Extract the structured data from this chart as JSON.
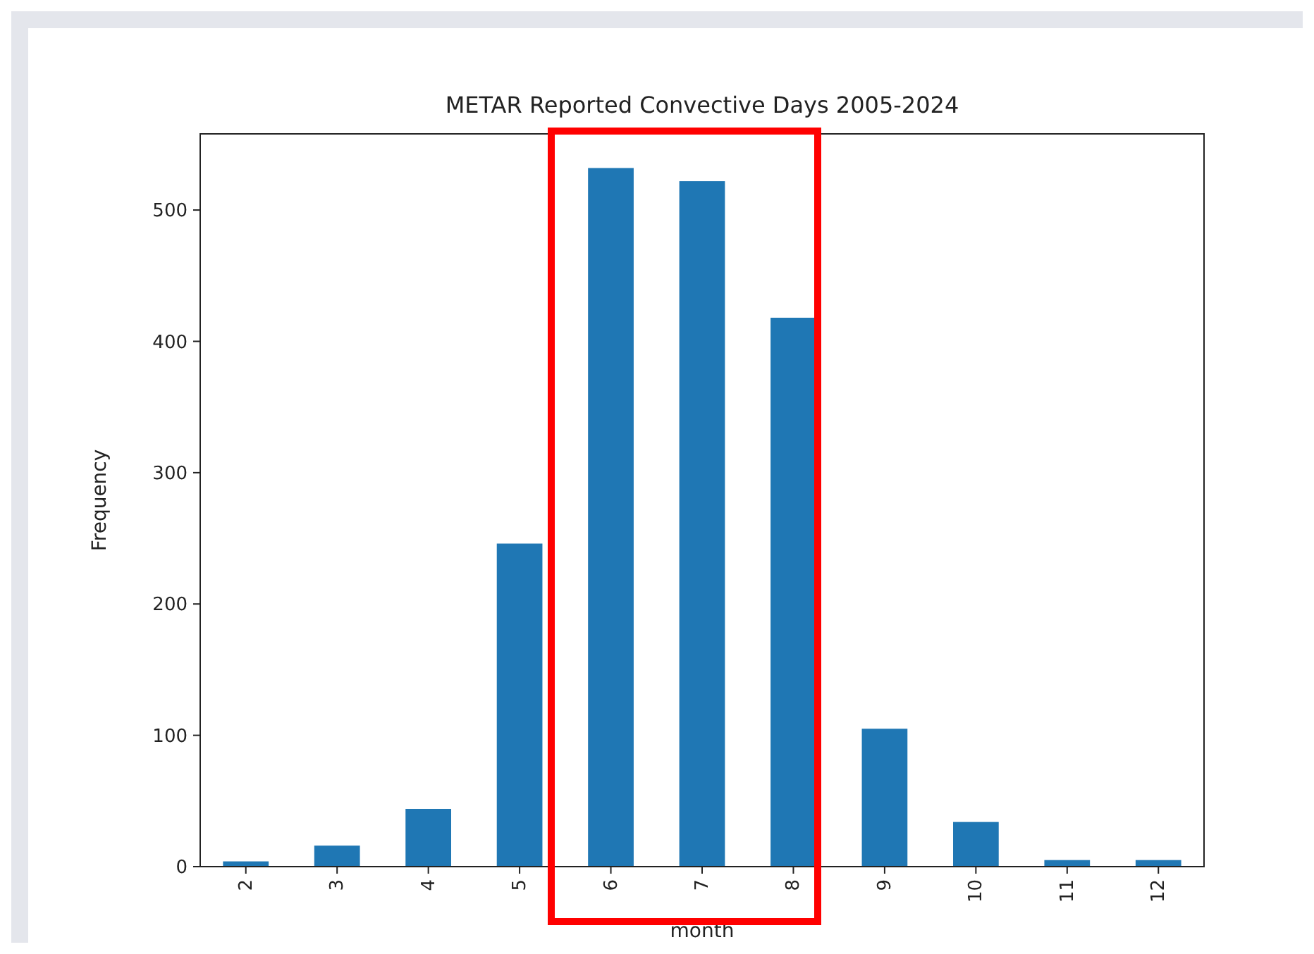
{
  "chart_data": {
    "type": "bar",
    "title": "METAR Reported Convective Days 2005-2024",
    "xlabel": "month",
    "ylabel": "Frequency",
    "categories": [
      "2",
      "3",
      "4",
      "5",
      "6",
      "7",
      "8",
      "9",
      "10",
      "11",
      "12"
    ],
    "values": [
      4,
      16,
      44,
      246,
      532,
      522,
      418,
      105,
      34,
      5,
      5
    ],
    "color": "#1f77b4",
    "ylim": [
      0,
      558
    ],
    "yticks": [
      0,
      100,
      200,
      300,
      400,
      500
    ],
    "grid": false
  }
}
